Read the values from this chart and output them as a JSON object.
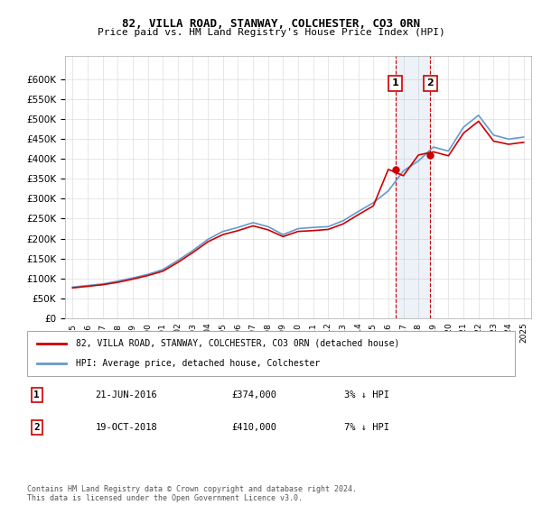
{
  "title1": "82, VILLA ROAD, STANWAY, COLCHESTER, CO3 0RN",
  "title2": "Price paid vs. HM Land Registry's House Price Index (HPI)",
  "legend_line1": "82, VILLA ROAD, STANWAY, COLCHESTER, CO3 0RN (detached house)",
  "legend_line2": "HPI: Average price, detached house, Colchester",
  "annotation1_label": "1",
  "annotation1_date": "21-JUN-2016",
  "annotation1_price": "£374,000",
  "annotation1_hpi": "3% ↓ HPI",
  "annotation2_label": "2",
  "annotation2_date": "19-OCT-2018",
  "annotation2_price": "£410,000",
  "annotation2_hpi": "7% ↓ HPI",
  "footer": "Contains HM Land Registry data © Crown copyright and database right 2024.\nThis data is licensed under the Open Government Licence v3.0.",
  "ylim": [
    0,
    660000
  ],
  "yticks": [
    0,
    50000,
    100000,
    150000,
    200000,
    250000,
    300000,
    350000,
    400000,
    450000,
    500000,
    550000,
    600000
  ],
  "red_color": "#cc0000",
  "blue_color": "#6699cc",
  "sale1_year": 2016.47,
  "sale1_price": 374000,
  "sale2_year": 2018.8,
  "sale2_price": 410000,
  "hpi_years": [
    1995,
    1996,
    1997,
    1998,
    1999,
    2000,
    2001,
    2002,
    2003,
    2004,
    2005,
    2006,
    2007,
    2008,
    2009,
    2010,
    2011,
    2012,
    2013,
    2014,
    2015,
    2016,
    2017,
    2018,
    2019,
    2020,
    2021,
    2022,
    2023,
    2024,
    2025
  ],
  "hpi_values": [
    78000,
    82000,
    86000,
    93000,
    101000,
    110000,
    122000,
    145000,
    170000,
    198000,
    218000,
    228000,
    240000,
    230000,
    210000,
    225000,
    228000,
    230000,
    245000,
    268000,
    290000,
    320000,
    370000,
    395000,
    430000,
    420000,
    480000,
    510000,
    460000,
    450000,
    455000
  ],
  "red_years": [
    1995,
    1996,
    1997,
    1998,
    1999,
    2000,
    2001,
    2002,
    2003,
    2004,
    2005,
    2006,
    2007,
    2008,
    2009,
    2010,
    2011,
    2012,
    2013,
    2014,
    2015,
    2016,
    2017,
    2018,
    2019,
    2020,
    2021,
    2022,
    2023,
    2024,
    2025
  ],
  "red_values": [
    76000,
    80000,
    84000,
    90000,
    98000,
    107000,
    118000,
    140000,
    165000,
    192000,
    210000,
    220000,
    232000,
    222000,
    205000,
    218000,
    220000,
    223000,
    237000,
    260000,
    282000,
    374000,
    358000,
    410000,
    418000,
    408000,
    465000,
    495000,
    445000,
    437000,
    442000
  ]
}
